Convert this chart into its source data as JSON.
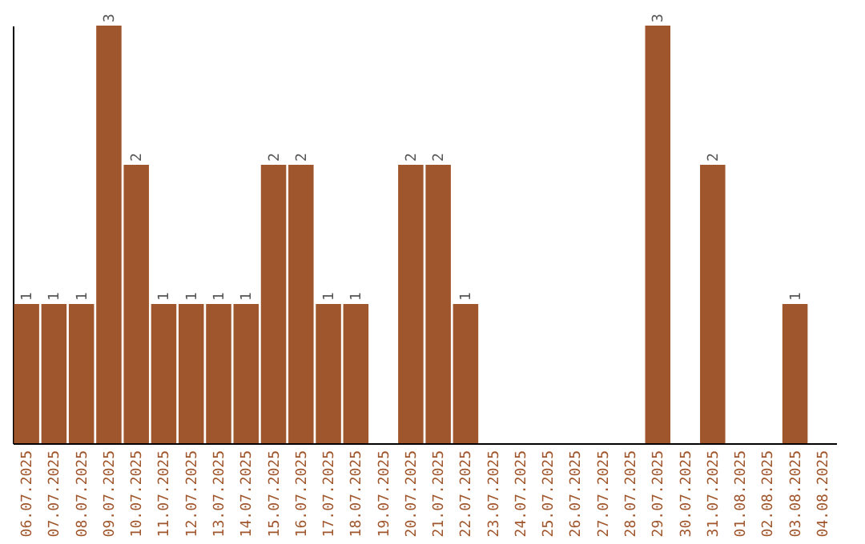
{
  "chart_data": {
    "type": "bar",
    "categories": [
      "06.07.2025",
      "07.07.2025",
      "08.07.2025",
      "09.07.2025",
      "10.07.2025",
      "11.07.2025",
      "12.07.2025",
      "13.07.2025",
      "14.07.2025",
      "15.07.2025",
      "16.07.2025",
      "17.07.2025",
      "18.07.2025",
      "19.07.2025",
      "20.07.2025",
      "21.07.2025",
      "22.07.2025",
      "23.07.2025",
      "24.07.2025",
      "25.07.2025",
      "26.07.2025",
      "27.07.2025",
      "28.07.2025",
      "29.07.2025",
      "30.07.2025",
      "31.07.2025",
      "01.08.2025",
      "02.08.2025",
      "03.08.2025",
      "04.08.2025"
    ],
    "values": [
      1,
      1,
      1,
      3,
      2,
      1,
      1,
      1,
      1,
      2,
      2,
      1,
      1,
      0,
      2,
      2,
      1,
      0,
      0,
      0,
      0,
      0,
      0,
      3,
      0,
      2,
      0,
      0,
      1,
      0
    ],
    "value_labels": [
      "1",
      "1",
      "1",
      "3",
      "2",
      "1",
      "1",
      "1",
      "1",
      "2",
      "2",
      "1",
      "1",
      null,
      "2",
      "2",
      "1",
      null,
      null,
      null,
      null,
      null,
      null,
      "3",
      null,
      "2",
      null,
      null,
      "1",
      null
    ],
    "color": "#a0562c",
    "ylim": [
      0,
      3
    ],
    "tick_labels": "x",
    "grid": false
  }
}
